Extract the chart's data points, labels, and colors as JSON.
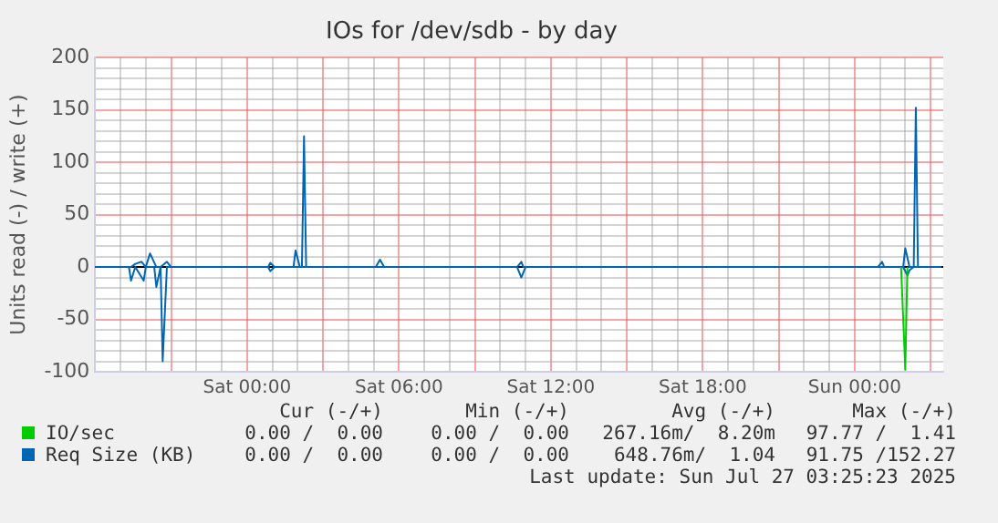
{
  "chart_data": {
    "type": "line",
    "title": "IOs for /dev/sdb - by day",
    "ylabel": "Units read (-) / write (+)",
    "xlim": [
      "2025-07-25T18:00",
      "2025-07-27T03:30"
    ],
    "ylim": [
      -100,
      200
    ],
    "xticks": [
      {
        "value": "2025-07-25T18:00",
        "label": null
      },
      {
        "value": "2025-07-25T19:00",
        "label": null
      },
      {
        "value": "2025-07-25T20:00",
        "label": null
      },
      {
        "value": "2025-07-25T21:00",
        "label": null
      },
      {
        "value": "2025-07-25T22:00",
        "label": null
      },
      {
        "value": "2025-07-25T23:00",
        "label": null
      },
      {
        "value": "2025-07-26T00:00",
        "label": "Sat 00:00"
      },
      {
        "value": "2025-07-26T01:00",
        "label": null
      },
      {
        "value": "2025-07-26T02:00",
        "label": null
      },
      {
        "value": "2025-07-26T03:00",
        "label": null
      },
      {
        "value": "2025-07-26T04:00",
        "label": null
      },
      {
        "value": "2025-07-26T05:00",
        "label": null
      },
      {
        "value": "2025-07-26T06:00",
        "label": "Sat 06:00"
      },
      {
        "value": "2025-07-26T07:00",
        "label": null
      },
      {
        "value": "2025-07-26T08:00",
        "label": null
      },
      {
        "value": "2025-07-26T09:00",
        "label": null
      },
      {
        "value": "2025-07-26T10:00",
        "label": null
      },
      {
        "value": "2025-07-26T11:00",
        "label": null
      },
      {
        "value": "2025-07-26T12:00",
        "label": "Sat 12:00"
      },
      {
        "value": "2025-07-26T13:00",
        "label": null
      },
      {
        "value": "2025-07-26T14:00",
        "label": null
      },
      {
        "value": "2025-07-26T15:00",
        "label": null
      },
      {
        "value": "2025-07-26T16:00",
        "label": null
      },
      {
        "value": "2025-07-26T17:00",
        "label": null
      },
      {
        "value": "2025-07-26T18:00",
        "label": "Sat 18:00"
      },
      {
        "value": "2025-07-26T19:00",
        "label": null
      },
      {
        "value": "2025-07-26T20:00",
        "label": null
      },
      {
        "value": "2025-07-26T21:00",
        "label": null
      },
      {
        "value": "2025-07-26T22:00",
        "label": null
      },
      {
        "value": "2025-07-26T23:00",
        "label": null
      },
      {
        "value": "2025-07-27T00:00",
        "label": "Sun 00:00"
      },
      {
        "value": "2025-07-27T01:00",
        "label": null
      },
      {
        "value": "2025-07-27T02:00",
        "label": null
      },
      {
        "value": "2025-07-27T03:00",
        "label": null
      }
    ],
    "yticks": [
      -100,
      {
        "value": -90,
        "label": null
      },
      {
        "value": -80,
        "label": null
      },
      {
        "value": -70,
        "label": null
      },
      {
        "value": -60,
        "label": null
      },
      -50,
      {
        "value": -40,
        "label": null
      },
      {
        "value": -30,
        "label": null
      },
      {
        "value": -20,
        "label": null
      },
      {
        "value": -10,
        "label": null
      },
      0,
      {
        "value": 10,
        "label": null
      },
      {
        "value": 20,
        "label": null
      },
      {
        "value": 30,
        "label": null
      },
      {
        "value": 40,
        "label": null
      },
      50,
      {
        "value": 60,
        "label": null
      },
      {
        "value": 70,
        "label": null
      },
      {
        "value": 80,
        "label": null
      },
      {
        "value": 90,
        "label": null
      },
      100,
      {
        "value": 110,
        "label": null
      },
      {
        "value": 120,
        "label": null
      },
      {
        "value": 130,
        "label": null
      },
      {
        "value": 140,
        "label": null
      },
      150,
      {
        "value": 160,
        "label": null
      },
      {
        "value": 170,
        "label": null
      },
      {
        "value": 180,
        "label": null
      },
      {
        "value": 190,
        "label": null
      },
      200
    ],
    "grid": true,
    "legend": "bottom left",
    "series": [
      {
        "name": "IO/sec",
        "color": "#00cc00",
        "x": [
          "2025-07-27T01:50",
          "2025-07-27T02:00",
          "2025-07-27T02:05"
        ],
        "values": [
          0,
          -98,
          0
        ]
      },
      {
        "name": "Req Size (KB)",
        "color": "#0066b3",
        "x": [
          "2025-07-25T18:00",
          "2025-07-25T19:25",
          "2025-07-25T19:35",
          "2025-07-25T19:50",
          "2025-07-25T20:00",
          "2025-07-25T20:10",
          "2025-07-25T20:25",
          "2025-07-25T20:35",
          "2025-07-25T20:50",
          "2025-07-25T21:00",
          "2025-07-26T00:50",
          "2025-07-26T00:55",
          "2025-07-26T01:05",
          "2025-07-26T01:50",
          "2025-07-26T01:55",
          "2025-07-26T02:05",
          "2025-07-26T02:10",
          "2025-07-26T02:15",
          "2025-07-26T02:20",
          "2025-07-26T05:05",
          "2025-07-26T05:15",
          "2025-07-26T05:25",
          "2025-07-26T10:40",
          "2025-07-26T10:50",
          "2025-07-26T10:55",
          "2025-07-27T00:55",
          "2025-07-27T01:05",
          "2025-07-27T01:10",
          "2025-07-27T01:55",
          "2025-07-27T02:00",
          "2025-07-27T02:10",
          "2025-07-27T02:20",
          "2025-07-27T02:25",
          "2025-07-27T02:30",
          "2025-07-27T03:25"
        ],
        "values": [
          0,
          0,
          3,
          5,
          0,
          13,
          0,
          0,
          5,
          0,
          0,
          4,
          0,
          0,
          16,
          0,
          0,
          125,
          0,
          0,
          7,
          0,
          0,
          5,
          0,
          0,
          5,
          0,
          0,
          18,
          0,
          0,
          152,
          0,
          0
        ]
      },
      {
        "color": "#0066b3",
        "x": [
          "2025-07-25T18:00",
          "2025-07-25T19:20",
          "2025-07-25T19:25",
          "2025-07-25T19:35",
          "2025-07-25T19:55",
          "2025-07-25T20:00",
          "2025-07-25T20:20",
          "2025-07-25T20:25",
          "2025-07-25T20:35",
          "2025-07-25T20:40",
          "2025-07-25T20:50",
          "2025-07-26T00:50",
          "2025-07-26T00:55",
          "2025-07-26T01:05",
          "2025-07-26T10:40",
          "2025-07-26T10:50",
          "2025-07-26T11:00",
          "2025-07-27T01:55",
          "2025-07-27T02:05",
          "2025-07-27T02:10",
          "2025-07-27T02:20",
          "2025-07-27T03:25"
        ],
        "values": [
          0,
          0,
          -13,
          0,
          -13,
          0,
          0,
          -19,
          0,
          -90,
          0,
          0,
          -4,
          0,
          0,
          -10,
          0,
          0,
          -8,
          -3,
          0,
          0
        ]
      }
    ],
    "ref_lines": [
      {
        "axis": "y",
        "value": 0,
        "color": "#000000"
      }
    ],
    "annotations": [
      "Cur (-/+)",
      "Min (-/+)",
      "Avg (-/+)",
      "Max (-/+)",
      "0.00 /  0.00",
      "0.00 /  0.00",
      "267.16m/  8.20m",
      "97.77 /  1.41",
      "0.00 /  0.00",
      "0.00 /  0.00",
      "648.76m/  1.04",
      "91.75 /152.27",
      "Last update: Sun Jul 27 03:25:23 2025"
    ]
  }
}
